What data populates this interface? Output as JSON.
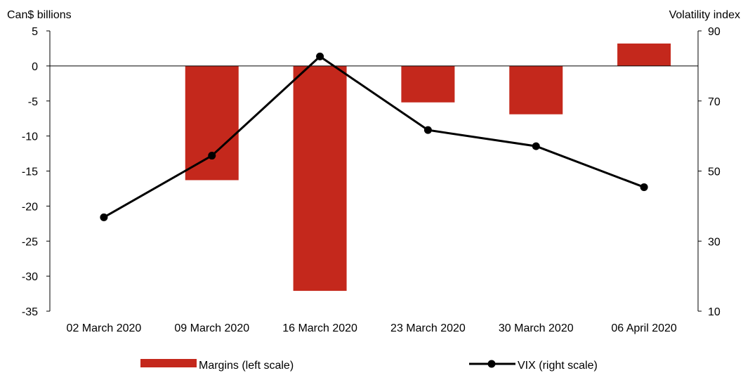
{
  "chart_data": {
    "type": "bar",
    "categories": [
      "02 March 2020",
      "09 March 2020",
      "16 March 2020",
      "23 March 2020",
      "30 March 2020",
      "06 April 2020"
    ],
    "y_left": {
      "label": "Can$ billions",
      "ylim": [
        -35,
        5
      ],
      "ticks": [
        5,
        0,
        -5,
        -10,
        -15,
        -20,
        -25,
        -30,
        -35
      ]
    },
    "y_right": {
      "label": "Volatility index",
      "ylim": [
        10,
        90
      ],
      "ticks": [
        90,
        70,
        50,
        30,
        10
      ]
    },
    "series": [
      {
        "name": "Margins (left scale)",
        "type": "bar",
        "axis": "left",
        "color": "#c4281c",
        "values": [
          0,
          -16.3,
          -32.1,
          -5.2,
          -6.9,
          3.2
        ]
      },
      {
        "name": "VIX (right scale)",
        "type": "line",
        "axis": "right",
        "color": "#000000",
        "values": [
          36.8,
          54.4,
          82.7,
          61.7,
          57.1,
          45.4
        ]
      }
    ],
    "legend_position": "bottom",
    "grid": false
  }
}
